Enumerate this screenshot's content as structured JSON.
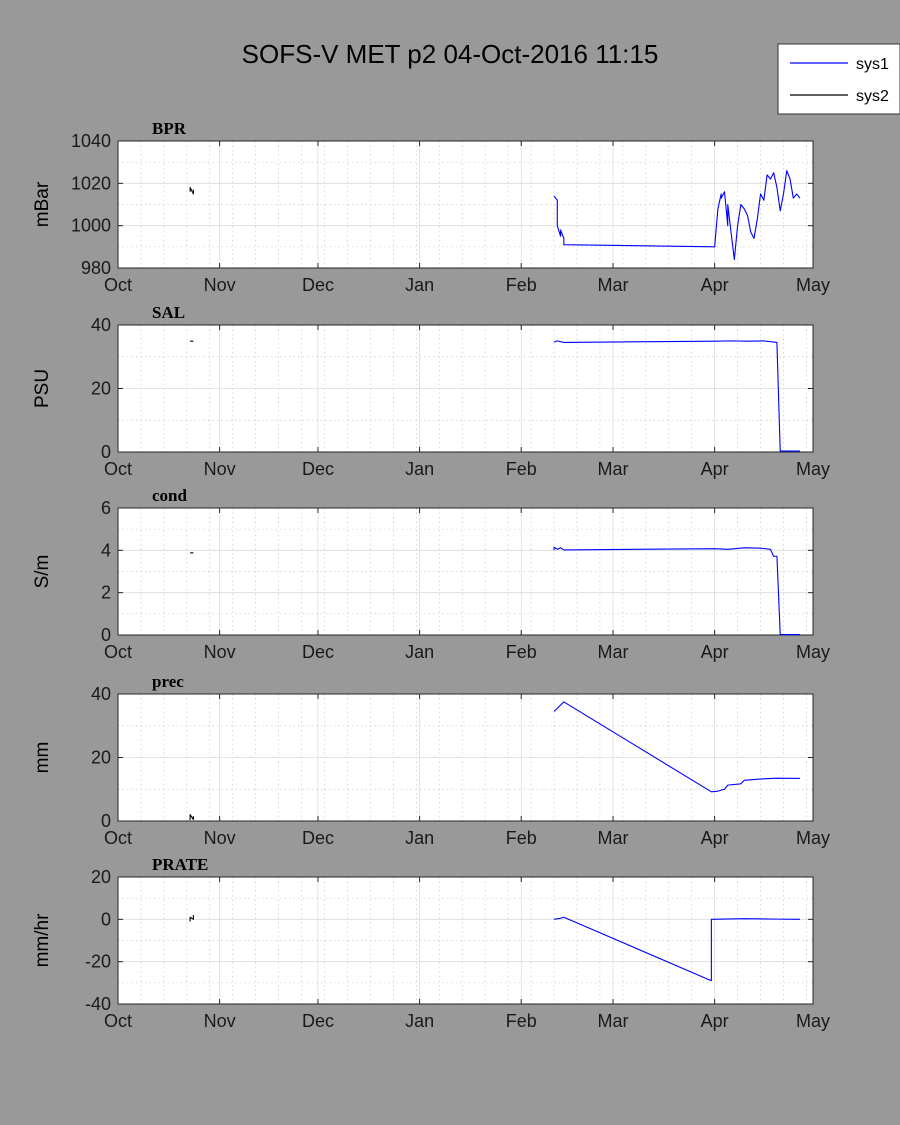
{
  "title": "SOFS-V MET p2 04-Oct-2016 11:15",
  "legend": [
    {
      "name": "sys1",
      "color": "#0000ff"
    },
    {
      "name": "sys2",
      "color": "#000000"
    }
  ],
  "chart_data": [
    {
      "type": "line",
      "panel_label": "BPR",
      "ylabel": "mBar",
      "ylim": [
        980,
        1040
      ],
      "yticks": [
        980,
        1000,
        1020,
        1040
      ],
      "x_ticks": [
        "Oct",
        "Nov",
        "Dec",
        "Jan",
        "Feb",
        "Mar",
        "Apr",
        "May"
      ],
      "xlim": [
        "2016-10-01",
        "2017-05-01"
      ],
      "grid": true,
      "series": [
        {
          "name": "sys1",
          "color": "#0000ff",
          "points": [
            [
              "2017-02-11",
              1014
            ],
            [
              "2017-02-12",
              1012
            ],
            [
              "2017-02-12",
              1000
            ],
            [
              "2017-02-13",
              995
            ],
            [
              "2017-02-13",
              998
            ],
            [
              "2017-02-14",
              994
            ],
            [
              "2017-02-14",
              991
            ],
            [
              "2017-04-01",
              990
            ],
            [
              "2017-04-02",
              1008
            ],
            [
              "2017-04-03",
              1015
            ],
            [
              "2017-04-03",
              1013
            ],
            [
              "2017-04-04",
              1016
            ],
            [
              "2017-04-05",
              1000
            ],
            [
              "2017-04-05",
              1010
            ],
            [
              "2017-04-06",
              997
            ],
            [
              "2017-04-07",
              984
            ],
            [
              "2017-04-08",
              1000
            ],
            [
              "2017-04-09",
              1010
            ],
            [
              "2017-04-10",
              1008
            ],
            [
              "2017-04-11",
              1005
            ],
            [
              "2017-04-12",
              997
            ],
            [
              "2017-04-13",
              994
            ],
            [
              "2017-04-14",
              1003
            ],
            [
              "2017-04-15",
              1015
            ],
            [
              "2017-04-16",
              1012
            ],
            [
              "2017-04-17",
              1024
            ],
            [
              "2017-04-18",
              1022
            ],
            [
              "2017-04-19",
              1025
            ],
            [
              "2017-04-20",
              1018
            ],
            [
              "2017-04-21",
              1007
            ],
            [
              "2017-04-22",
              1015
            ],
            [
              "2017-04-23",
              1026
            ],
            [
              "2017-04-24",
              1022
            ],
            [
              "2017-04-25",
              1013
            ],
            [
              "2017-04-26",
              1015
            ],
            [
              "2017-04-27",
              1013
            ]
          ]
        },
        {
          "name": "sys2",
          "color": "#000000",
          "points": [
            [
              "2016-10-23",
              1016
            ],
            [
              "2016-10-23",
              1018
            ],
            [
              "2016-10-24",
              1015
            ],
            [
              "2016-10-24",
              1017
            ]
          ]
        }
      ]
    },
    {
      "type": "line",
      "panel_label": "SAL",
      "ylabel": "PSU",
      "ylim": [
        0,
        40
      ],
      "yticks": [
        0,
        20,
        40
      ],
      "x_ticks": [
        "Oct",
        "Nov",
        "Dec",
        "Jan",
        "Feb",
        "Mar",
        "Apr",
        "May"
      ],
      "xlim": [
        "2016-10-01",
        "2017-05-01"
      ],
      "grid": true,
      "series": [
        {
          "name": "sys1",
          "color": "#0000ff",
          "points": [
            [
              "2017-02-11",
              34.6
            ],
            [
              "2017-02-12",
              35
            ],
            [
              "2017-02-14",
              34.5
            ],
            [
              "2017-04-01",
              34.9
            ],
            [
              "2017-04-06",
              35
            ],
            [
              "2017-04-11",
              34.9
            ],
            [
              "2017-04-16",
              35
            ],
            [
              "2017-04-20",
              34.5
            ],
            [
              "2017-04-20",
              34.2
            ],
            [
              "2017-04-21",
              0.3
            ],
            [
              "2017-04-27",
              0.3
            ]
          ]
        },
        {
          "name": "sys2",
          "color": "#000000",
          "points": [
            [
              "2016-10-23",
              34.9
            ],
            [
              "2016-10-24",
              34.9
            ]
          ]
        }
      ]
    },
    {
      "type": "line",
      "panel_label": "cond",
      "ylabel": "S/m",
      "ylim": [
        0,
        6
      ],
      "yticks": [
        0,
        2,
        4,
        6
      ],
      "x_ticks": [
        "Oct",
        "Nov",
        "Dec",
        "Jan",
        "Feb",
        "Mar",
        "Apr",
        "May"
      ],
      "xlim": [
        "2016-10-01",
        "2017-05-01"
      ],
      "grid": true,
      "series": [
        {
          "name": "sys1",
          "color": "#0000ff",
          "points": [
            [
              "2017-02-11",
              4.0
            ],
            [
              "2017-02-11",
              4.15
            ],
            [
              "2017-02-12",
              4.05
            ],
            [
              "2017-02-13",
              4.12
            ],
            [
              "2017-02-14",
              4.02
            ],
            [
              "2017-04-01",
              4.08
            ],
            [
              "2017-04-05",
              4.05
            ],
            [
              "2017-04-10",
              4.12
            ],
            [
              "2017-04-15",
              4.1
            ],
            [
              "2017-04-18",
              4.05
            ],
            [
              "2017-04-19",
              3.72
            ],
            [
              "2017-04-20",
              3.72
            ],
            [
              "2017-04-21",
              0.02
            ],
            [
              "2017-04-27",
              0.02
            ]
          ]
        },
        {
          "name": "sys2",
          "color": "#000000",
          "points": [
            [
              "2016-10-23",
              3.88
            ],
            [
              "2016-10-24",
              3.88
            ]
          ]
        }
      ]
    },
    {
      "type": "line",
      "panel_label": "prec",
      "ylabel": "mm",
      "ylim": [
        0,
        40
      ],
      "yticks": [
        0,
        20,
        40
      ],
      "x_ticks": [
        "Oct",
        "Nov",
        "Dec",
        "Jan",
        "Feb",
        "Mar",
        "Apr",
        "May"
      ],
      "xlim": [
        "2016-10-01",
        "2017-05-01"
      ],
      "grid": true,
      "series": [
        {
          "name": "sys1",
          "color": "#0000ff",
          "points": [
            [
              "2017-02-11",
              34.5
            ],
            [
              "2017-02-12",
              35.5
            ],
            [
              "2017-02-13",
              36.5
            ],
            [
              "2017-02-14",
              37.5
            ],
            [
              "2017-03-31",
              9.2
            ],
            [
              "2017-04-02",
              9.4
            ],
            [
              "2017-04-04",
              10
            ],
            [
              "2017-04-05",
              11.3
            ],
            [
              "2017-04-09",
              11.7
            ],
            [
              "2017-04-10",
              12.8
            ],
            [
              "2017-04-16",
              13.3
            ],
            [
              "2017-04-20",
              13.5
            ],
            [
              "2017-04-27",
              13.4
            ]
          ]
        },
        {
          "name": "sys2",
          "color": "#000000",
          "points": [
            [
              "2016-10-23",
              0.3
            ],
            [
              "2016-10-23",
              2
            ],
            [
              "2016-10-24",
              0.5
            ],
            [
              "2016-10-24",
              1.5
            ]
          ]
        }
      ]
    },
    {
      "type": "line",
      "panel_label": "PRATE",
      "ylabel": "mm/hr",
      "ylim": [
        -40,
        20
      ],
      "yticks": [
        -40,
        -20,
        0,
        20
      ],
      "x_ticks": [
        "Oct",
        "Nov",
        "Dec",
        "Jan",
        "Feb",
        "Mar",
        "Apr",
        "May"
      ],
      "xlim": [
        "2016-10-01",
        "2017-05-01"
      ],
      "grid": true,
      "series": [
        {
          "name": "sys1",
          "color": "#0000ff",
          "points": [
            [
              "2017-02-11",
              0
            ],
            [
              "2017-02-13",
              0.5
            ],
            [
              "2017-02-14",
              1
            ],
            [
              "2017-03-31",
              -29
            ],
            [
              "2017-03-31",
              0
            ],
            [
              "2017-04-10",
              0.3
            ],
            [
              "2017-04-20",
              0.1
            ],
            [
              "2017-04-27",
              0
            ]
          ]
        },
        {
          "name": "sys2",
          "color": "#000000",
          "points": [
            [
              "2016-10-23",
              -1
            ],
            [
              "2016-10-23",
              1
            ],
            [
              "2016-10-24",
              0
            ],
            [
              "2016-10-24",
              2
            ]
          ]
        }
      ]
    }
  ]
}
